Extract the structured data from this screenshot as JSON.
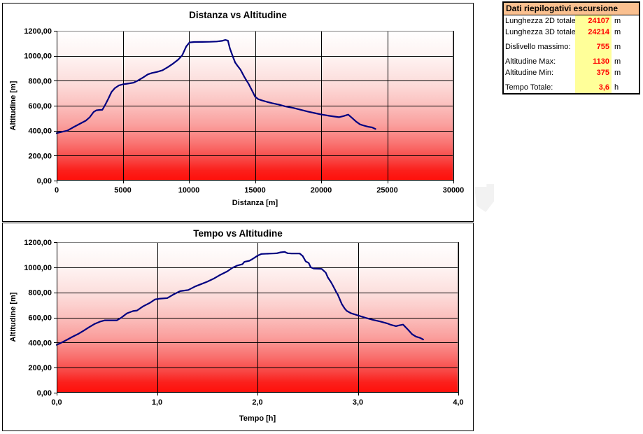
{
  "summary_table": {
    "title": "Dati riepilogativi escursione",
    "header_bg": "#fac090",
    "value_bg": "#ffff99",
    "value_color": "#ff0000",
    "rows": [
      {
        "label": "Lunghezza 2D totale",
        "value": "24107",
        "unit": "m"
      },
      {
        "label": "Lunghezza 3D totale",
        "value": "24214",
        "unit": "m"
      },
      {
        "label": "",
        "value": "",
        "unit": ""
      },
      {
        "label": "Dislivello massimo:",
        "value": "755",
        "unit": "m"
      },
      {
        "label": "",
        "value": "",
        "unit": ""
      },
      {
        "label": "Altitudine Max:",
        "value": "1130",
        "unit": "m"
      },
      {
        "label": "Altitudine Min:",
        "value": "375",
        "unit": "m"
      },
      {
        "label": "",
        "value": "",
        "unit": ""
      },
      {
        "label": "Tempo Totale:",
        "value": "3,6",
        "unit": "h"
      }
    ]
  },
  "chart_data": [
    {
      "type": "line",
      "title": "Distanza vs Altitudine",
      "xlabel": "Distanza [m]",
      "ylabel": "Altitudine [m]",
      "xlim": [
        0,
        30000
      ],
      "ylim": [
        0,
        1200
      ],
      "grid": true,
      "legend": "none",
      "x_tick_values": [
        0,
        5000,
        10000,
        15000,
        20000,
        25000,
        30000
      ],
      "x_tick_labels": [
        "0",
        "5000",
        "10000",
        "15000",
        "20000",
        "25000",
        "30000"
      ],
      "y_tick_values": [
        0,
        200,
        400,
        600,
        800,
        1000,
        1200
      ],
      "y_tick_labels": [
        "0,00",
        "200,00",
        "400,00",
        "600,00",
        "800,00",
        "1000,00",
        "1200,00"
      ],
      "line_color": "#000080",
      "gridline_color": "#000000",
      "plot_border_color": "#808080",
      "plot_gradient": [
        [
          0,
          "#ffffff"
        ],
        [
          0.18,
          "#fef2f1"
        ],
        [
          0.35,
          "#fcdddb"
        ],
        [
          0.5,
          "#fbbfbd"
        ],
        [
          0.63,
          "#fa9f9d"
        ],
        [
          0.75,
          "#f97472"
        ],
        [
          0.86,
          "#f84543"
        ],
        [
          0.93,
          "#fb201c"
        ],
        [
          1,
          "#ff0f0a"
        ]
      ],
      "series": [
        {
          "name": "Altitudine",
          "points": [
            [
              0,
              380
            ],
            [
              400,
              391
            ],
            [
              800,
              400
            ],
            [
              1200,
              424
            ],
            [
              1700,
              452
            ],
            [
              2200,
              480
            ],
            [
              2500,
              508
            ],
            [
              2800,
              550
            ],
            [
              3000,
              563
            ],
            [
              3200,
              566
            ],
            [
              3450,
              567
            ],
            [
              3650,
              603
            ],
            [
              3900,
              655
            ],
            [
              4150,
              710
            ],
            [
              4400,
              741
            ],
            [
              4700,
              762
            ],
            [
              5000,
              771
            ],
            [
              5400,
              777
            ],
            [
              5800,
              784
            ],
            [
              6100,
              799
            ],
            [
              6500,
              824
            ],
            [
              6900,
              851
            ],
            [
              7200,
              862
            ],
            [
              7600,
              871
            ],
            [
              8000,
              884
            ],
            [
              8400,
              909
            ],
            [
              8800,
              937
            ],
            [
              9200,
              970
            ],
            [
              9500,
              1005
            ],
            [
              9800,
              1075
            ],
            [
              10050,
              1107
            ],
            [
              10400,
              1110
            ],
            [
              11000,
              1111
            ],
            [
              11600,
              1112
            ],
            [
              12100,
              1114
            ],
            [
              12500,
              1119
            ],
            [
              12750,
              1127
            ],
            [
              12950,
              1121
            ],
            [
              13100,
              1058
            ],
            [
              13300,
              1000
            ],
            [
              13500,
              946
            ],
            [
              13700,
              916
            ],
            [
              13900,
              889
            ],
            [
              14200,
              829
            ],
            [
              14500,
              777
            ],
            [
              14800,
              716
            ],
            [
              15000,
              673
            ],
            [
              15250,
              652
            ],
            [
              15500,
              643
            ],
            [
              15900,
              631
            ],
            [
              16300,
              620
            ],
            [
              16800,
              609
            ],
            [
              17300,
              594
            ],
            [
              17900,
              582
            ],
            [
              18500,
              566
            ],
            [
              19000,
              553
            ],
            [
              19500,
              541
            ],
            [
              20000,
              530
            ],
            [
              20500,
              521
            ],
            [
              21000,
              513
            ],
            [
              21350,
              508
            ],
            [
              21700,
              517
            ],
            [
              22050,
              529
            ],
            [
              22350,
              501
            ],
            [
              22650,
              472
            ],
            [
              22950,
              450
            ],
            [
              23250,
              440
            ],
            [
              23550,
              431
            ],
            [
              23850,
              426
            ],
            [
              24107,
              414
            ]
          ]
        }
      ]
    },
    {
      "type": "line",
      "title": "Tempo vs Altitudine",
      "xlabel": "Tempo [h]",
      "ylabel": "Altitudine [m]",
      "xlim": [
        0,
        4
      ],
      "ylim": [
        0,
        1200
      ],
      "grid": true,
      "legend": "none",
      "x_tick_values": [
        0,
        1,
        2,
        3,
        4
      ],
      "x_tick_labels": [
        "0,0",
        "1,0",
        "2,0",
        "3,0",
        "4,0"
      ],
      "y_tick_values": [
        0,
        200,
        400,
        600,
        800,
        1000,
        1200
      ],
      "y_tick_labels": [
        "0,00",
        "200,00",
        "400,00",
        "600,00",
        "800,00",
        "1000,00",
        "1200,00"
      ],
      "line_color": "#000080",
      "gridline_color": "#000000",
      "plot_border_color": "#808080",
      "plot_gradient": [
        [
          0,
          "#ffffff"
        ],
        [
          0.18,
          "#fef2f1"
        ],
        [
          0.35,
          "#fcdddb"
        ],
        [
          0.5,
          "#fbbfbd"
        ],
        [
          0.63,
          "#fa9f9d"
        ],
        [
          0.75,
          "#f97472"
        ],
        [
          0.86,
          "#f84543"
        ],
        [
          0.93,
          "#fb201c"
        ],
        [
          1,
          "#ff0f0a"
        ]
      ],
      "series": [
        {
          "name": "Altitudine",
          "points": [
            [
              0,
              381
            ],
            [
              0.05,
              400
            ],
            [
              0.1,
              421
            ],
            [
              0.16,
              447
            ],
            [
              0.22,
              471
            ],
            [
              0.27,
              495
            ],
            [
              0.32,
              521
            ],
            [
              0.38,
              549
            ],
            [
              0.43,
              566
            ],
            [
              0.48,
              577
            ],
            [
              0.6,
              577
            ],
            [
              0.64,
              596
            ],
            [
              0.7,
              633
            ],
            [
              0.76,
              651
            ],
            [
              0.8,
              655
            ],
            [
              0.86,
              688
            ],
            [
              0.93,
              717
            ],
            [
              0.98,
              744
            ],
            [
              1.03,
              750
            ],
            [
              1.1,
              754
            ],
            [
              1.16,
              782
            ],
            [
              1.23,
              810
            ],
            [
              1.31,
              819
            ],
            [
              1.38,
              847
            ],
            [
              1.44,
              866
            ],
            [
              1.5,
              885
            ],
            [
              1.57,
              912
            ],
            [
              1.63,
              940
            ],
            [
              1.7,
              968
            ],
            [
              1.75,
              996
            ],
            [
              1.8,
              1014
            ],
            [
              1.85,
              1025
            ],
            [
              1.87,
              1043
            ],
            [
              1.92,
              1052
            ],
            [
              1.94,
              1061
            ],
            [
              1.97,
              1076
            ],
            [
              2.0,
              1092
            ],
            [
              2.04,
              1106
            ],
            [
              2.12,
              1109
            ],
            [
              2.19,
              1111
            ],
            [
              2.23,
              1119
            ],
            [
              2.27,
              1123
            ],
            [
              2.3,
              1112
            ],
            [
              2.34,
              1110
            ],
            [
              2.42,
              1110
            ],
            [
              2.45,
              1090
            ],
            [
              2.48,
              1047
            ],
            [
              2.51,
              1034
            ],
            [
              2.53,
              1000
            ],
            [
              2.56,
              990
            ],
            [
              2.64,
              987
            ],
            [
              2.68,
              957
            ],
            [
              2.7,
              920
            ],
            [
              2.73,
              884
            ],
            [
              2.75,
              856
            ],
            [
              2.78,
              810
            ],
            [
              2.8,
              782
            ],
            [
              2.82,
              744
            ],
            [
              2.84,
              707
            ],
            [
              2.87,
              670
            ],
            [
              2.89,
              652
            ],
            [
              2.93,
              634
            ],
            [
              2.97,
              624
            ],
            [
              3.01,
              614
            ],
            [
              3.08,
              596
            ],
            [
              3.15,
              581
            ],
            [
              3.22,
              568
            ],
            [
              3.29,
              553
            ],
            [
              3.33,
              541
            ],
            [
              3.38,
              531
            ],
            [
              3.41,
              537
            ],
            [
              3.45,
              543
            ],
            [
              3.5,
              502
            ],
            [
              3.54,
              466
            ],
            [
              3.58,
              447
            ],
            [
              3.62,
              437
            ],
            [
              3.65,
              424
            ]
          ]
        }
      ]
    }
  ]
}
